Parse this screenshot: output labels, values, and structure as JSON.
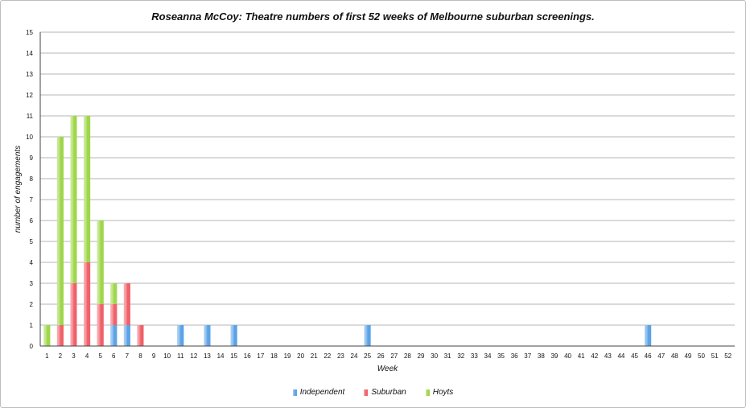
{
  "colors": {
    "independent": "#5ba3e6",
    "suburban": "#f0616a",
    "hoyts": "#9fd64a",
    "grid": "#b5b5b5",
    "axis": "#444444"
  },
  "chart_data": {
    "type": "bar",
    "stacked": true,
    "title": "Roseanna McCoy: Theatre numbers of first 52 weeks of Melbourne suburban screenings.",
    "xlabel": "Week",
    "ylabel": "number of engagements",
    "ylim": [
      0,
      15
    ],
    "yticks": [
      "0",
      "1",
      "2",
      "3",
      "4",
      "5",
      "6",
      "7",
      "8",
      "9",
      "10",
      "11",
      "12",
      "13",
      "14",
      "15"
    ],
    "grid": true,
    "legend_position": "bottom",
    "categories": [
      "1",
      "2",
      "3",
      "4",
      "5",
      "6",
      "7",
      "8",
      "9",
      "10",
      "11",
      "12",
      "13",
      "14",
      "15",
      "16",
      "17",
      "18",
      "19",
      "20",
      "21",
      "22",
      "23",
      "24",
      "25",
      "26",
      "27",
      "28",
      "29",
      "30",
      "31",
      "32",
      "33",
      "34",
      "35",
      "36",
      "37",
      "38",
      "39",
      "40",
      "41",
      "42",
      "43",
      "44",
      "45",
      "46",
      "47",
      "48",
      "49",
      "50",
      "51",
      "52"
    ],
    "series": [
      {
        "name": "Independent",
        "color": "#5ba3e6",
        "values": [
          0,
          0,
          0,
          0,
          0,
          1,
          1,
          0,
          0,
          0,
          1,
          0,
          1,
          0,
          1,
          0,
          0,
          0,
          0,
          0,
          0,
          0,
          0,
          0,
          1,
          0,
          0,
          0,
          0,
          0,
          0,
          0,
          0,
          0,
          0,
          0,
          0,
          0,
          0,
          0,
          0,
          0,
          0,
          0,
          0,
          1,
          0,
          0,
          0,
          0,
          0,
          0
        ]
      },
      {
        "name": "Suburban",
        "color": "#f0616a",
        "values": [
          0,
          1,
          3,
          4,
          2,
          1,
          2,
          1,
          0,
          0,
          0,
          0,
          0,
          0,
          0,
          0,
          0,
          0,
          0,
          0,
          0,
          0,
          0,
          0,
          0,
          0,
          0,
          0,
          0,
          0,
          0,
          0,
          0,
          0,
          0,
          0,
          0,
          0,
          0,
          0,
          0,
          0,
          0,
          0,
          0,
          0,
          0,
          0,
          0,
          0,
          0,
          0
        ]
      },
      {
        "name": "Hoyts",
        "color": "#9fd64a",
        "values": [
          1,
          9,
          8,
          7,
          4,
          1,
          0,
          0,
          0,
          0,
          0,
          0,
          0,
          0,
          0,
          0,
          0,
          0,
          0,
          0,
          0,
          0,
          0,
          0,
          0,
          0,
          0,
          0,
          0,
          0,
          0,
          0,
          0,
          0,
          0,
          0,
          0,
          0,
          0,
          0,
          0,
          0,
          0,
          0,
          0,
          0,
          0,
          0,
          0,
          0,
          0,
          0
        ]
      }
    ]
  }
}
